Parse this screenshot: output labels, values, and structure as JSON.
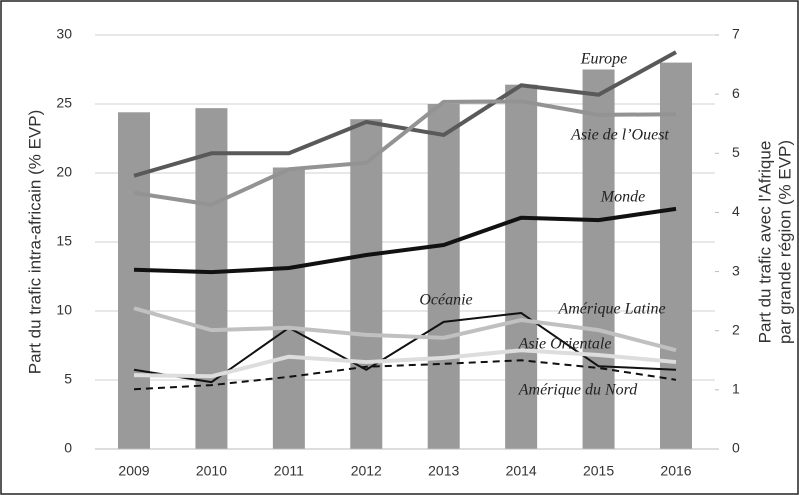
{
  "chart_data": {
    "type": "combo",
    "categories": [
      "2009",
      "2010",
      "2011",
      "2012",
      "2013",
      "2014",
      "2015",
      "2016"
    ],
    "bar_values": [
      24.4,
      24.7,
      20.4,
      23.9,
      25.0,
      26.4,
      27.5,
      28.0
    ],
    "bar_color": "#9a9a9a",
    "ylabel": "Part du trafic intra-africain (% EVP)",
    "y2label": [
      "Part du trafic avec l'Afrique",
      "par grande région (% EVP)"
    ],
    "ylim": [
      0,
      30
    ],
    "yticks": [
      0,
      5,
      10,
      15,
      20,
      25,
      30
    ],
    "y2lim": [
      0,
      7
    ],
    "y2ticks": [
      0,
      1,
      2,
      3,
      4,
      5,
      6,
      7
    ],
    "grid": true,
    "series": [
      {
        "name": "Europe",
        "color": "#595959",
        "width": 4,
        "axis": "y2",
        "values": [
          4.62,
          5.0,
          5.0,
          5.53,
          5.31,
          6.15,
          5.99,
          6.71
        ]
      },
      {
        "name": "Asie de l’Ouest",
        "color": "#939393",
        "width": 4,
        "axis": "y2",
        "values": [
          4.33,
          4.13,
          4.73,
          4.84,
          5.87,
          5.88,
          5.65,
          5.66
        ]
      },
      {
        "name": "Monde",
        "color": "#111111",
        "width": 4,
        "axis": "y2",
        "values": [
          3.03,
          2.99,
          3.06,
          3.28,
          3.45,
          3.91,
          3.87,
          4.06
        ]
      },
      {
        "name": "Océanie",
        "color": "#111111",
        "width": 2,
        "axis": "y2",
        "values": [
          1.34,
          1.13,
          2.05,
          1.34,
          2.15,
          2.3,
          1.4,
          1.34
        ]
      },
      {
        "name": "Amérique Latine",
        "color": "#c0c0c0",
        "width": 4,
        "axis": "y2",
        "values": [
          2.38,
          2.01,
          2.05,
          1.93,
          1.88,
          2.18,
          2.01,
          1.67
        ]
      },
      {
        "name": "Asie Orientale",
        "color": "#dddddd",
        "width": 4,
        "axis": "y2",
        "values": [
          1.25,
          1.23,
          1.56,
          1.47,
          1.54,
          1.67,
          1.59,
          1.47
        ]
      },
      {
        "name": "Amérique du Nord",
        "color": "#111111",
        "width": 2,
        "dashed": true,
        "axis": "y2",
        "values": [
          1.01,
          1.08,
          1.22,
          1.39,
          1.44,
          1.5,
          1.37,
          1.17
        ]
      }
    ]
  }
}
